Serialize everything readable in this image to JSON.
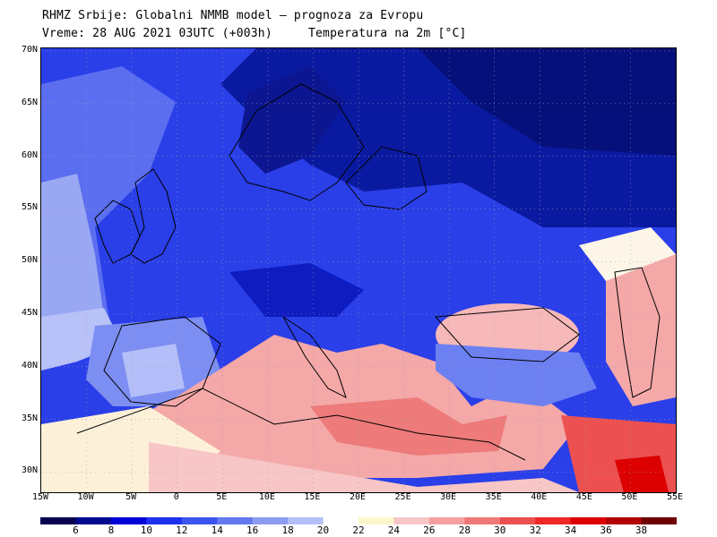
{
  "header": {
    "line1": "RHMZ Srbije: Globalni NMMB model — prognoza za Evropu",
    "line2": "Vreme: 28 AUG 2021 03UTC (+003h)     Temperatura na 2m [°C]"
  },
  "axes": {
    "lat_labels": [
      "70N",
      "65N",
      "60N",
      "55N",
      "50N",
      "45N",
      "40N",
      "35N",
      "30N"
    ],
    "lon_labels": [
      "15W",
      "10W",
      "5W",
      "0",
      "5E",
      "10E",
      "15E",
      "20E",
      "25E",
      "30E",
      "35E",
      "40E",
      "45E",
      "50E",
      "55E"
    ],
    "lon_range": [
      -15,
      55
    ],
    "lat_range": [
      28,
      70
    ],
    "grid": "dotted"
  },
  "colorbar": {
    "labels": [
      "6",
      "8",
      "10",
      "12",
      "14",
      "16",
      "18",
      "20",
      "22",
      "24",
      "26",
      "28",
      "30",
      "32",
      "34",
      "36",
      "38"
    ],
    "colors": [
      "#0a0050",
      "#000a90",
      "#0000d8",
      "#1e30f0",
      "#3c55f0",
      "#6478f0",
      "#8c9cf0",
      "#b4bef8",
      "#ffffff",
      "#fdf6cc",
      "#f8c8c8",
      "#f4a0a0",
      "#f07878",
      "#ec5050",
      "#f02828",
      "#dc0000",
      "#b40000",
      "#6e0000"
    ]
  }
}
